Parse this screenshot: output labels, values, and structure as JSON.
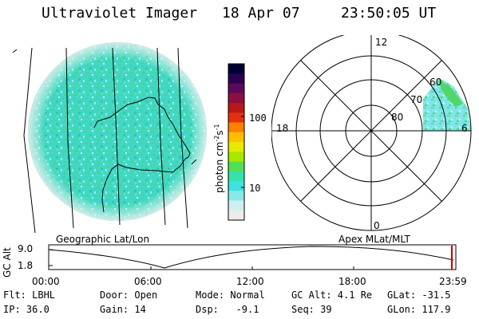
{
  "header": {
    "instrument": "Ultraviolet Imager",
    "date": "18 Apr 07",
    "time": "23:50:05 UT"
  },
  "colorbar": {
    "unit_label": "photon cm",
    "unit_exp1": "-2",
    "unit_mid": "s",
    "unit_exp2": "-1",
    "ticks": [
      "100",
      "10"
    ],
    "colors": [
      "#000033",
      "#2a0050",
      "#5a0a5a",
      "#8a1040",
      "#b81818",
      "#e23010",
      "#ff8000",
      "#ffc000",
      "#e8e800",
      "#a6e800",
      "#52e052",
      "#38e0b0",
      "#40e0e0",
      "#8ae8e8",
      "#cfeeee",
      "#ececec"
    ]
  },
  "polar_plot": {
    "labels": [
      "12",
      "18",
      "6",
      "0"
    ],
    "lat_labels": [
      "60",
      "70",
      "80"
    ]
  },
  "captions": {
    "left": "Geographic Lat/Lon",
    "right": "Apex MLat/MLT"
  },
  "altitude_panel": {
    "ylabel": "GC Alt",
    "y_ticks": [
      "9.0",
      "1.8"
    ],
    "x_ticks": [
      "00:00",
      "06:00",
      "12:00",
      "18:00",
      "23:59"
    ]
  },
  "info": {
    "flt": "Flt: LBHL",
    "ip": "IP: 36.0",
    "door": "Door: Open",
    "gain": "Gain: 14",
    "mode": "Mode: Normal",
    "dsp": "Dsp:   -9.1",
    "gcalt": "GC Alt: 4.1 Re",
    "seq": "Seq: 39",
    "glat": "GLat: -31.5",
    "glon": "GLon: 117.9"
  }
}
